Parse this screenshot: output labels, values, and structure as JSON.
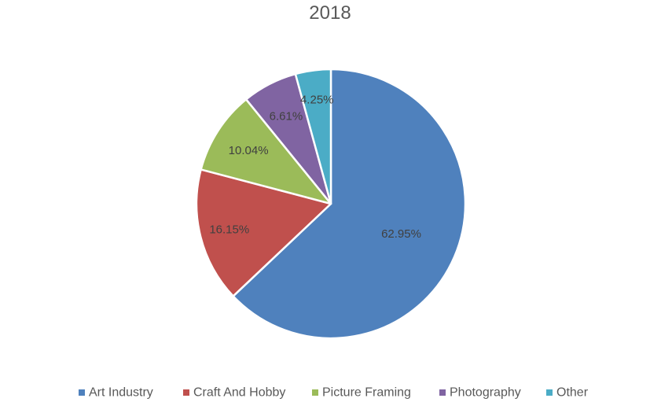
{
  "chart_data": {
    "type": "pie",
    "title": "2018",
    "categories": [
      "Art Industry",
      "Craft And Hobby",
      "Picture Framing",
      "Photography",
      "Other"
    ],
    "values": [
      62.95,
      16.15,
      10.04,
      6.61,
      4.25
    ],
    "labels": [
      "62.95%",
      "16.15%",
      "10.04%",
      "6.61%",
      "4.25%"
    ],
    "colors": [
      "#4F81BD",
      "#C0504D",
      "#9BBB59",
      "#8064A2",
      "#4BACC6"
    ],
    "start_angle": "12 o'clock",
    "direction": "clockwise",
    "legend_position": "bottom"
  }
}
